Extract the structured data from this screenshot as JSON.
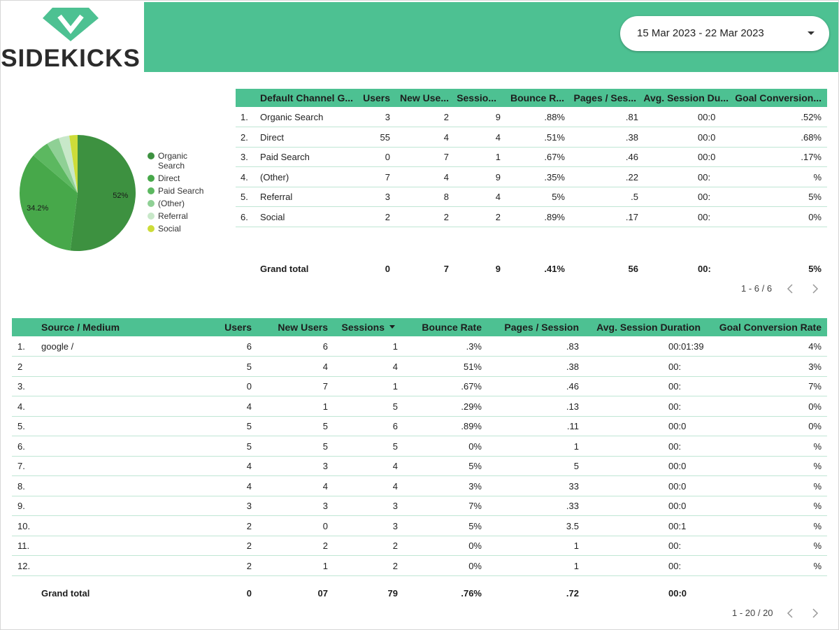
{
  "header": {
    "brand": "SIDEKICKS",
    "date_range": "15 Mar 2023 - 22 Mar 2023"
  },
  "pie": {
    "type": "pie",
    "categories": [
      "Organic Search",
      "Direct",
      "Paid Search",
      "(Other)",
      "Referral",
      "Social"
    ],
    "values": [
      52,
      34.2,
      5,
      3.5,
      3,
      2.3
    ],
    "value_labels": [
      "52%",
      "34.2%",
      null,
      null,
      null,
      null
    ],
    "colors": [
      "#3d9140",
      "#47a84a",
      "#5cb860",
      "#8fd095",
      "#c8e8c9",
      "#cddc39"
    ]
  },
  "table1": {
    "headers": [
      "Default Channel G...",
      "Users",
      "New Use...",
      "Sessio...",
      "Bounce R...",
      "Pages / Ses...",
      "Avg. Session Du...",
      "Goal Conversion..."
    ],
    "rows": [
      {
        "n": "1.",
        "label": "Organic Search",
        "cells": [
          "3",
          "2",
          "9",
          ".88%",
          ".81",
          "00:0",
          ".52%"
        ]
      },
      {
        "n": "2.",
        "label": "Direct",
        "cells": [
          "55",
          "4",
          "4",
          ".51%",
          ".38",
          "00:0",
          ".68%"
        ]
      },
      {
        "n": "3.",
        "label": "Paid Search",
        "cells": [
          "0",
          "7",
          "1",
          ".67%",
          ".46",
          "00:0",
          ".17%"
        ]
      },
      {
        "n": "4.",
        "label": "(Other)",
        "cells": [
          "7",
          "4",
          "9",
          ".35%",
          ".22",
          "00:",
          "%"
        ]
      },
      {
        "n": "5.",
        "label": "Referral",
        "cells": [
          "3",
          "8",
          "4",
          "5%",
          ".5",
          "00:",
          "5%"
        ]
      },
      {
        "n": "6.",
        "label": "Social",
        "cells": [
          "2",
          "2",
          "2",
          ".89%",
          ".17",
          "00:",
          "0%"
        ]
      }
    ],
    "grand_total": {
      "label": "Grand total",
      "cells": [
        "0",
        "7",
        "9",
        ".41%",
        "56",
        "00:",
        "5%"
      ]
    },
    "pagination": "1 - 6 / 6"
  },
  "table2": {
    "headers": [
      "Source / Medium",
      "Users",
      "New Users",
      "Sessions",
      "Bounce Rate",
      "Pages / Session",
      "Avg. Session Duration",
      "Goal Conversion Rate"
    ],
    "rows": [
      {
        "n": "1.",
        "label": "google /",
        "cells": [
          "6",
          "6",
          "1",
          ".3%",
          ".83",
          "00:01:39",
          "4%"
        ]
      },
      {
        "n": "2",
        "cells": [
          "5",
          "4",
          "4",
          "51%",
          ".38",
          "00:",
          "3%"
        ]
      },
      {
        "n": "3.",
        "cells": [
          "0",
          "7",
          "1",
          ".67%",
          ".46",
          "00:",
          "7%"
        ]
      },
      {
        "n": "4.",
        "cells": [
          "4",
          "1",
          "5",
          ".29%",
          ".13",
          "00:",
          "0%"
        ]
      },
      {
        "n": "5.",
        "cells": [
          "5",
          "5",
          "6",
          ".89%",
          ".11",
          "00:0",
          "0%"
        ]
      },
      {
        "n": "6.",
        "cells": [
          "5",
          "5",
          "5",
          "0%",
          "1",
          "00:",
          "%"
        ]
      },
      {
        "n": "7.",
        "cells": [
          "4",
          "3",
          "4",
          "5%",
          "5",
          "00:0",
          "%"
        ]
      },
      {
        "n": "8.",
        "cells": [
          "4",
          "4",
          "4",
          "3%",
          "33",
          "00:0",
          "%"
        ]
      },
      {
        "n": "9.",
        "cells": [
          "3",
          "3",
          "3",
          "7%",
          ".33",
          "00:0",
          "%"
        ]
      },
      {
        "n": "10.",
        "cells": [
          "2",
          "0",
          "3",
          "5%",
          "3.5",
          "00:1",
          "%"
        ]
      },
      {
        "n": "11.",
        "cells": [
          "2",
          "2",
          "2",
          "0%",
          "1",
          "00:",
          "%"
        ]
      },
      {
        "n": "12.",
        "cells": [
          "2",
          "1",
          "2",
          "0%",
          "1",
          "00:",
          "%"
        ]
      }
    ],
    "grand_total": {
      "label": "Grand total",
      "cells": [
        "0",
        "07",
        "79",
        ".76%",
        ".72",
        "00:0"
      ]
    },
    "pagination": "1 - 20 / 20"
  }
}
